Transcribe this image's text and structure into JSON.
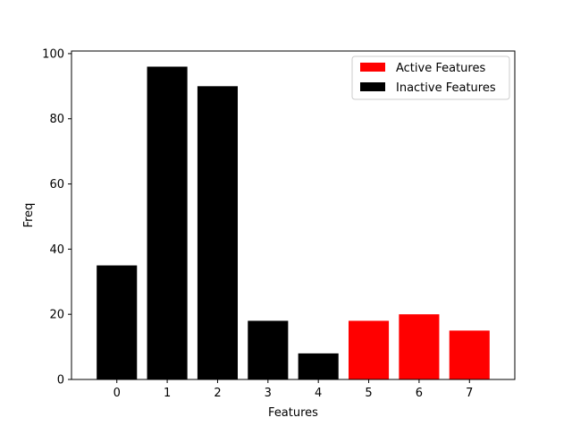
{
  "chart_data": {
    "type": "bar",
    "categories": [
      "0",
      "1",
      "2",
      "3",
      "4",
      "5",
      "6",
      "7"
    ],
    "values": [
      35,
      96,
      90,
      18,
      8,
      18,
      20,
      15
    ],
    "bar_groups": [
      "inactive",
      "inactive",
      "inactive",
      "inactive",
      "inactive",
      "active",
      "active",
      "active"
    ],
    "series": [
      {
        "key": "active",
        "name": "Active Features",
        "color": "#ff0000"
      },
      {
        "key": "inactive",
        "name": "Inactive Features",
        "color": "#000000"
      }
    ],
    "title": "",
    "xlabel": "Features",
    "ylabel": "Freq",
    "ylim": [
      0,
      100.8
    ],
    "yticks": [
      0,
      20,
      40,
      60,
      80,
      100
    ],
    "grid": false,
    "legend_position": "upper-right"
  }
}
